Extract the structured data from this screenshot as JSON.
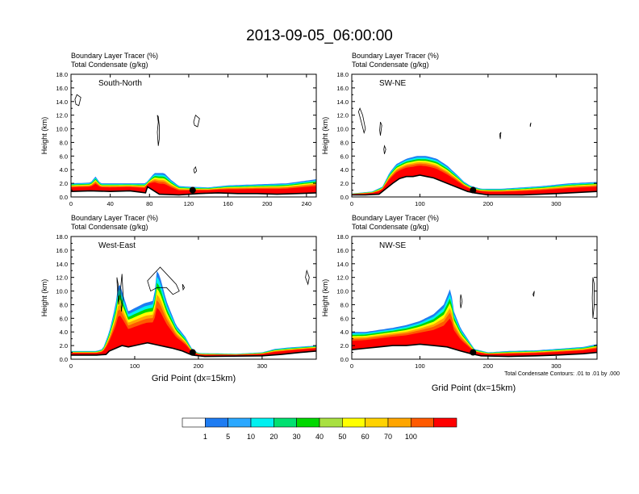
{
  "figure": {
    "title": "2013-09-05_06:00:00",
    "xlabel": "Grid Point (dx=15km)",
    "ylabel": "Height (km)",
    "fill_label": "Boundary Layer Tracer   (%)",
    "contour_label": "Total Condensate   (g/kg)",
    "contour_note": "Total Condensate Contours: .01 to .01 by .000"
  },
  "colorbar": {
    "levels": [
      "1",
      "5",
      "10",
      "20",
      "30",
      "40",
      "50",
      "60",
      "70",
      "100"
    ],
    "colors": [
      "#ffffff",
      "#1e7cf2",
      "#2aa8ff",
      "#00f0f0",
      "#00e070",
      "#00d800",
      "#a8e040",
      "#ffff00",
      "#ffd200",
      "#ffa500",
      "#ff5a00",
      "#ff0000"
    ]
  },
  "chart_data": [
    {
      "type": "area",
      "panel": "South-North",
      "title": "South-North",
      "ylim": [
        0,
        18
      ],
      "yticks": [
        "0.0",
        "2.0",
        "4.0",
        "6.0",
        "8.0",
        "10.0",
        "12.0",
        "14.0",
        "16.0",
        "18.0"
      ],
      "xlim": [
        0,
        250
      ],
      "xticks": [
        "0",
        "40",
        "80",
        "120",
        "160",
        "200",
        "240"
      ],
      "marker": {
        "x": 124,
        "y": 1.0
      },
      "terrain": [
        [
          0,
          0.8
        ],
        [
          20,
          0.9
        ],
        [
          40,
          0.8
        ],
        [
          60,
          0.9
        ],
        [
          76,
          0.6
        ],
        [
          78,
          1.5
        ],
        [
          90,
          0.4
        ],
        [
          110,
          0.3
        ],
        [
          130,
          0.5
        ],
        [
          150,
          0.6
        ],
        [
          170,
          0.5
        ],
        [
          190,
          0.5
        ],
        [
          210,
          0.4
        ],
        [
          230,
          0.5
        ],
        [
          250,
          0.6
        ]
      ],
      "tracer_top": [
        [
          0,
          2.0
        ],
        [
          20,
          2.1
        ],
        [
          25,
          3.0
        ],
        [
          30,
          2.0
        ],
        [
          60,
          2.0
        ],
        [
          76,
          2.0
        ],
        [
          85,
          3.5
        ],
        [
          95,
          3.5
        ],
        [
          102,
          2.5
        ],
        [
          110,
          1.6
        ],
        [
          120,
          1.5
        ],
        [
          140,
          1.4
        ],
        [
          160,
          1.7
        ],
        [
          180,
          1.8
        ],
        [
          200,
          1.9
        ],
        [
          220,
          2.0
        ],
        [
          240,
          2.4
        ],
        [
          250,
          2.6
        ]
      ],
      "condensate": [
        [
          [
            4,
            14.3
          ],
          [
            6,
            15.0
          ],
          [
            10,
            14.6
          ],
          [
            8,
            13.4
          ],
          [
            5,
            13.6
          ]
        ],
        [
          [
            88,
            12.0
          ],
          [
            89,
            11.0
          ],
          [
            88,
            9.5
          ],
          [
            89,
            7.5
          ],
          [
            90,
            8.5
          ],
          [
            90,
            10.5
          ],
          [
            89,
            11.8
          ]
        ],
        [
          [
            125,
            11.0
          ],
          [
            127,
            12.0
          ],
          [
            131,
            11.5
          ],
          [
            129,
            10.3
          ],
          [
            126,
            10.5
          ]
        ],
        [
          [
            125,
            4.0
          ],
          [
            127,
            4.4
          ],
          [
            128,
            3.8
          ],
          [
            126,
            3.5
          ]
        ]
      ]
    },
    {
      "type": "area",
      "panel": "SW-NE",
      "title": "SW-NE",
      "ylim": [
        0,
        18
      ],
      "yticks": [
        "0.0",
        "2.0",
        "4.0",
        "6.0",
        "8.0",
        "10.0",
        "12.0",
        "14.0",
        "16.0",
        "18.0"
      ],
      "xlim": [
        0,
        360
      ],
      "xticks": [
        "0",
        "100",
        "200",
        "300"
      ],
      "marker": {
        "x": 178,
        "y": 1.0
      },
      "terrain": [
        [
          0,
          0.3
        ],
        [
          20,
          0.3
        ],
        [
          40,
          0.4
        ],
        [
          50,
          1.2
        ],
        [
          60,
          2.0
        ],
        [
          70,
          2.7
        ],
        [
          80,
          3.0
        ],
        [
          90,
          3.0
        ],
        [
          100,
          3.2
        ],
        [
          110,
          3.0
        ],
        [
          120,
          2.8
        ],
        [
          130,
          2.4
        ],
        [
          140,
          2.0
        ],
        [
          150,
          1.6
        ],
        [
          160,
          1.2
        ],
        [
          170,
          0.8
        ],
        [
          180,
          0.6
        ],
        [
          200,
          0.3
        ],
        [
          250,
          0.3
        ],
        [
          300,
          0.5
        ],
        [
          360,
          0.8
        ]
      ],
      "tracer_top": [
        [
          0,
          0.5
        ],
        [
          30,
          0.8
        ],
        [
          45,
          1.5
        ],
        [
          55,
          3.5
        ],
        [
          65,
          4.8
        ],
        [
          80,
          5.6
        ],
        [
          95,
          6.0
        ],
        [
          110,
          6.0
        ],
        [
          125,
          5.6
        ],
        [
          140,
          4.6
        ],
        [
          155,
          3.2
        ],
        [
          165,
          2.2
        ],
        [
          175,
          1.6
        ],
        [
          190,
          1.2
        ],
        [
          220,
          1.2
        ],
        [
          250,
          1.4
        ],
        [
          280,
          1.6
        ],
        [
          320,
          2.0
        ],
        [
          360,
          2.2
        ]
      ],
      "condensate": [
        [
          [
            12,
            13.0
          ],
          [
            16,
            12.0
          ],
          [
            20,
            10.0
          ],
          [
            18,
            9.4
          ],
          [
            14,
            11.0
          ],
          [
            10,
            12.5
          ]
        ],
        [
          [
            42,
            9.0
          ],
          [
            44,
            10.5
          ],
          [
            42,
            11.0
          ],
          [
            41,
            9.8
          ]
        ],
        [
          [
            48,
            7.5
          ],
          [
            50,
            7.0
          ],
          [
            48,
            6.3
          ],
          [
            47,
            7.0
          ]
        ],
        [
          [
            218,
            8.5
          ],
          [
            219,
            9.5
          ],
          [
            217,
            9.2
          ]
        ],
        [
          [
            262,
            10.6
          ],
          [
            263,
            10.9
          ],
          [
            262,
            10.3
          ]
        ]
      ]
    },
    {
      "type": "area",
      "panel": "West-East",
      "title": "West-East",
      "ylim": [
        0,
        18
      ],
      "yticks": [
        "0.0",
        "2.0",
        "4.0",
        "6.0",
        "8.0",
        "10.0",
        "12.0",
        "14.0",
        "16.0",
        "18.0"
      ],
      "xlim": [
        0,
        385
      ],
      "xticks": [
        "0",
        "100",
        "200",
        "300"
      ],
      "marker": {
        "x": 191,
        "y": 1.0
      },
      "terrain": [
        [
          0,
          0.6
        ],
        [
          40,
          0.6
        ],
        [
          55,
          0.7
        ],
        [
          60,
          1.2
        ],
        [
          70,
          1.6
        ],
        [
          80,
          2.0
        ],
        [
          90,
          1.8
        ],
        [
          100,
          2.0
        ],
        [
          110,
          2.2
        ],
        [
          120,
          2.4
        ],
        [
          130,
          2.2
        ],
        [
          140,
          2.0
        ],
        [
          150,
          1.8
        ],
        [
          160,
          1.6
        ],
        [
          175,
          1.2
        ],
        [
          190,
          0.6
        ],
        [
          210,
          0.4
        ],
        [
          300,
          0.5
        ],
        [
          330,
          0.7
        ],
        [
          360,
          1.0
        ],
        [
          385,
          1.2
        ]
      ],
      "tracer_top": [
        [
          0,
          1.2
        ],
        [
          40,
          1.2
        ],
        [
          50,
          1.5
        ],
        [
          60,
          4.0
        ],
        [
          70,
          8.0
        ],
        [
          75,
          11.5
        ],
        [
          80,
          10.0
        ],
        [
          90,
          7.0
        ],
        [
          100,
          7.5
        ],
        [
          115,
          8.2
        ],
        [
          130,
          8.6
        ],
        [
          135,
          13.2
        ],
        [
          140,
          12.0
        ],
        [
          150,
          8.5
        ],
        [
          165,
          5.0
        ],
        [
          180,
          3.2
        ],
        [
          190,
          1.5
        ],
        [
          200,
          0.9
        ],
        [
          260,
          0.8
        ],
        [
          300,
          1.0
        ],
        [
          320,
          1.5
        ],
        [
          340,
          1.7
        ],
        [
          385,
          2.0
        ]
      ],
      "condensate": [
        [
          [
            72,
            12.0
          ],
          [
            74,
            11.0
          ],
          [
            76,
            9.5
          ],
          [
            75,
            8.0
          ],
          [
            73,
            10.0
          ]
        ],
        [
          [
            80,
            12.5
          ],
          [
            82,
            9.0
          ],
          [
            79,
            7.0
          ],
          [
            78,
            10.5
          ]
        ],
        [
          [
            120,
            11.5
          ],
          [
            130,
            12.5
          ],
          [
            140,
            13.5
          ],
          [
            155,
            12.0
          ],
          [
            165,
            11.0
          ],
          [
            170,
            10.0
          ],
          [
            160,
            9.5
          ],
          [
            150,
            10.5
          ],
          [
            135,
            10.5
          ],
          [
            125,
            10.0
          ]
        ],
        [
          [
            175,
            11.0
          ],
          [
            178,
            10.5
          ],
          [
            176,
            10.2
          ]
        ],
        [
          [
            370,
            13.0
          ],
          [
            374,
            12.0
          ],
          [
            372,
            11.0
          ],
          [
            368,
            12.0
          ]
        ]
      ]
    },
    {
      "type": "area",
      "panel": "NW-SE",
      "title": "NW-SE",
      "ylim": [
        0,
        18
      ],
      "yticks": [
        "0.0",
        "2.0",
        "4.0",
        "6.0",
        "8.0",
        "10.0",
        "12.0",
        "14.0",
        "16.0",
        "18.0"
      ],
      "xlim": [
        0,
        360
      ],
      "xticks": [
        "0",
        "100",
        "200",
        "300"
      ],
      "marker": {
        "x": 178,
        "y": 1.0
      },
      "terrain": [
        [
          0,
          1.4
        ],
        [
          20,
          1.6
        ],
        [
          40,
          1.8
        ],
        [
          60,
          2.0
        ],
        [
          80,
          2.0
        ],
        [
          100,
          2.2
        ],
        [
          120,
          2.0
        ],
        [
          140,
          1.8
        ],
        [
          160,
          1.2
        ],
        [
          175,
          0.8
        ],
        [
          190,
          0.5
        ],
        [
          230,
          0.4
        ],
        [
          270,
          0.5
        ],
        [
          300,
          0.6
        ],
        [
          340,
          0.8
        ],
        [
          360,
          1.0
        ]
      ],
      "tracer_top": [
        [
          0,
          4.0
        ],
        [
          20,
          4.0
        ],
        [
          40,
          4.3
        ],
        [
          60,
          4.6
        ],
        [
          80,
          5.0
        ],
        [
          100,
          5.6
        ],
        [
          120,
          6.6
        ],
        [
          135,
          8.0
        ],
        [
          145,
          10.5
        ],
        [
          150,
          7.0
        ],
        [
          160,
          4.5
        ],
        [
          170,
          3.0
        ],
        [
          180,
          1.5
        ],
        [
          200,
          1.0
        ],
        [
          230,
          1.2
        ],
        [
          270,
          1.3
        ],
        [
          300,
          1.5
        ],
        [
          340,
          1.8
        ],
        [
          360,
          2.2
        ]
      ],
      "condensate": [
        [
          [
            160,
            9.5
          ],
          [
            162,
            8.5
          ],
          [
            160,
            7.5
          ],
          [
            159,
            8.5
          ]
        ],
        [
          [
            266,
            9.5
          ],
          [
            268,
            10.0
          ],
          [
            267,
            9.2
          ]
        ],
        [
          [
            354,
            12.0
          ],
          [
            356,
            11.0
          ],
          [
            356,
            8.0
          ],
          [
            354,
            6.0
          ],
          [
            353,
            9.0
          ]
        ]
      ]
    }
  ]
}
